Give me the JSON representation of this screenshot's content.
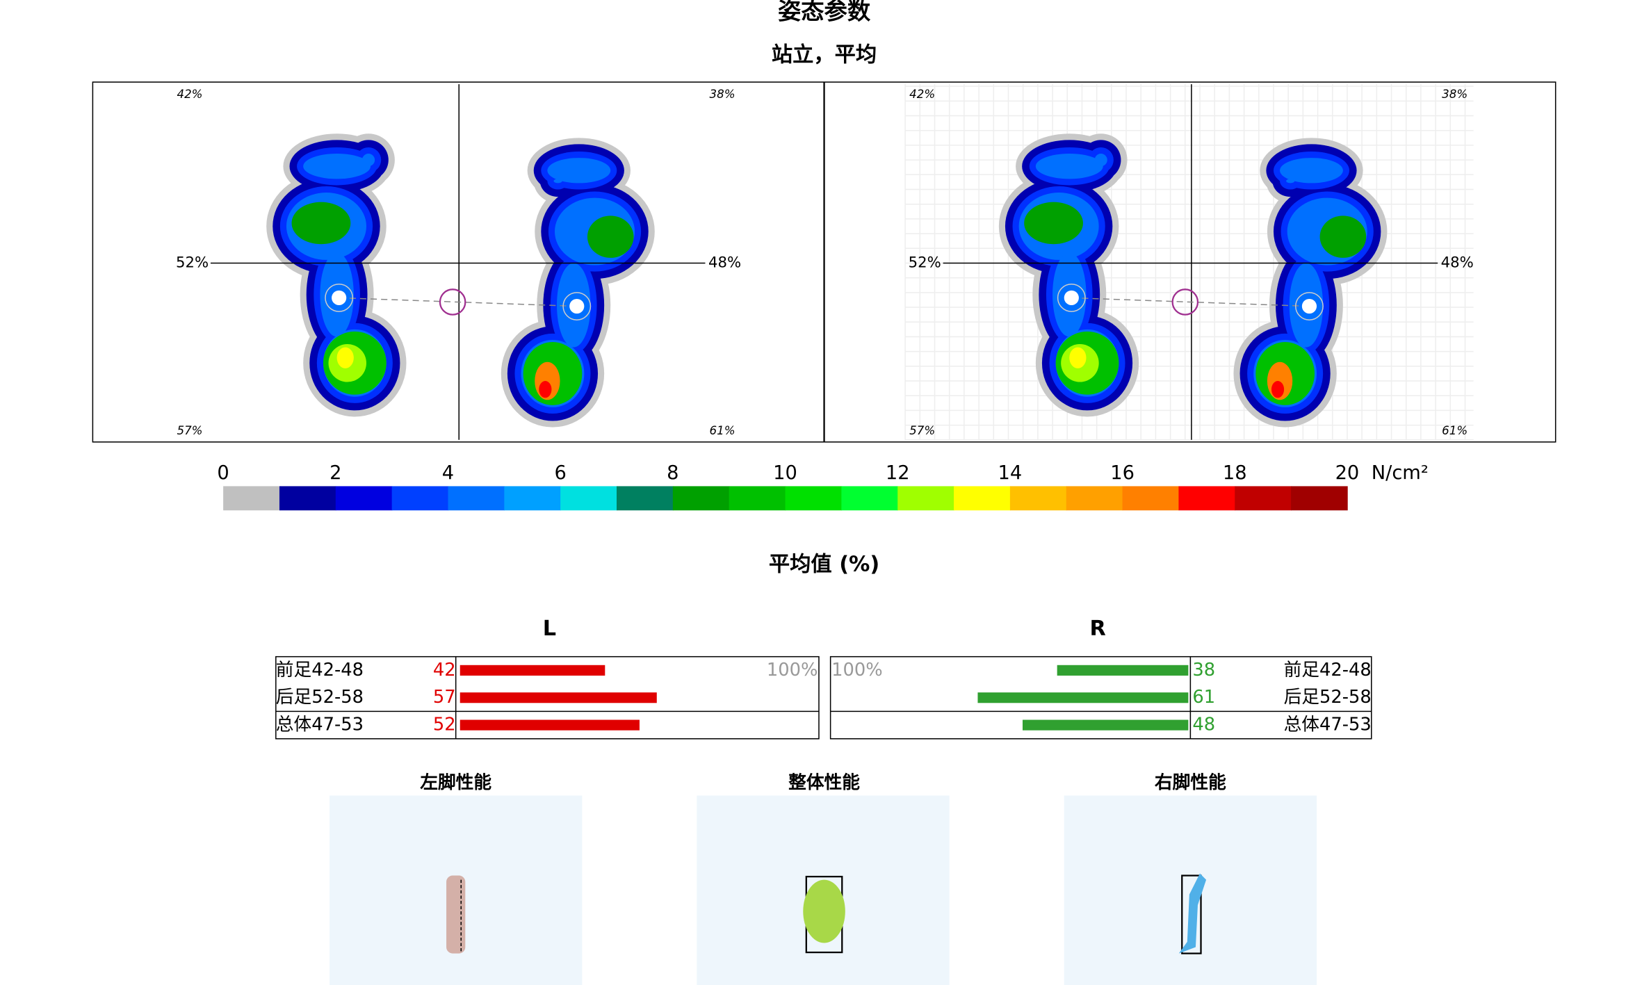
{
  "header": {
    "title": "姿态参数",
    "subtitle": "站立，平均"
  },
  "footmaps": [
    {
      "top_left": "42%",
      "top_right": "38%",
      "mid_left": "52%",
      "mid_right": "48%",
      "bottom_left": "57%",
      "bottom_right": "61%"
    },
    {
      "top_left": "42%",
      "top_right": "38%",
      "mid_left": "52%",
      "mid_right": "48%",
      "bottom_left": "57%",
      "bottom_right": "61%"
    }
  ],
  "colorbar": {
    "ticks": [
      0,
      2,
      4,
      6,
      8,
      10,
      12,
      14,
      16,
      18,
      20
    ],
    "unit": "N/cm²",
    "colors": [
      "#c0c0c0",
      "#0000a0",
      "#0000e0",
      "#0040ff",
      "#0070ff",
      "#00a0ff",
      "#00e0e0",
      "#008060",
      "#00a000",
      "#00c000",
      "#00e000",
      "#00ff30",
      "#a0ff00",
      "#ffff00",
      "#ffc000",
      "#ffa000",
      "#ff8000",
      "#ff0000",
      "#c00000",
      "#a00000"
    ]
  },
  "balance": {
    "title": "平均值 (%)",
    "left": {
      "label": "L",
      "color": "#e00000",
      "scale": {
        "value": 100,
        "label": "100%"
      },
      "rows": [
        {
          "name": "前足42-48",
          "value": 42
        },
        {
          "name": "后足52-58",
          "value": 57
        },
        {
          "name": "总体47-53",
          "value": 52
        }
      ]
    },
    "right": {
      "label": "R",
      "color": "#30a030",
      "scale": {
        "value": 100,
        "label": "100%"
      },
      "rows": [
        {
          "name": "前足42-48",
          "value": 38
        },
        {
          "name": "后足52-58",
          "value": 61
        },
        {
          "name": "总体47-53",
          "value": 48
        }
      ]
    }
  },
  "performance": {
    "titles": [
      "左脚性能",
      "整体性能",
      "右脚性能"
    ]
  }
}
